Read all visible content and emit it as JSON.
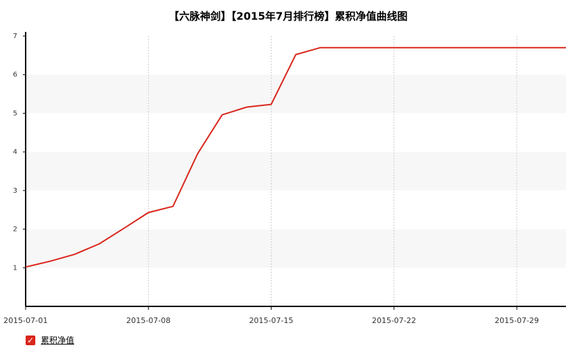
{
  "chart_data": {
    "type": "line",
    "title": "【六脉神剑】【2015年7月排行榜】累积净值曲线图",
    "categories": [
      "2015-07-01",
      null,
      null,
      null,
      null,
      "2015-07-08",
      null,
      null,
      null,
      null,
      "2015-07-15",
      null,
      null,
      null,
      null,
      "2015-07-22",
      null,
      null,
      null,
      null,
      "2015-07-29",
      null,
      null
    ],
    "series": [
      {
        "name": "累积净值",
        "color": "#d9261c",
        "values": [
          1.02,
          1.17,
          1.35,
          1.62,
          2.02,
          2.43,
          2.59,
          3.95,
          4.96,
          5.16,
          5.23,
          6.52,
          6.7,
          6.7,
          6.7,
          6.7,
          6.7,
          6.7,
          6.7,
          6.7,
          6.7,
          6.7,
          6.7
        ]
      }
    ],
    "ylim": [
      0,
      7
    ],
    "yticks": [
      1,
      2,
      3,
      4,
      5,
      6,
      7
    ],
    "grid": true
  }
}
